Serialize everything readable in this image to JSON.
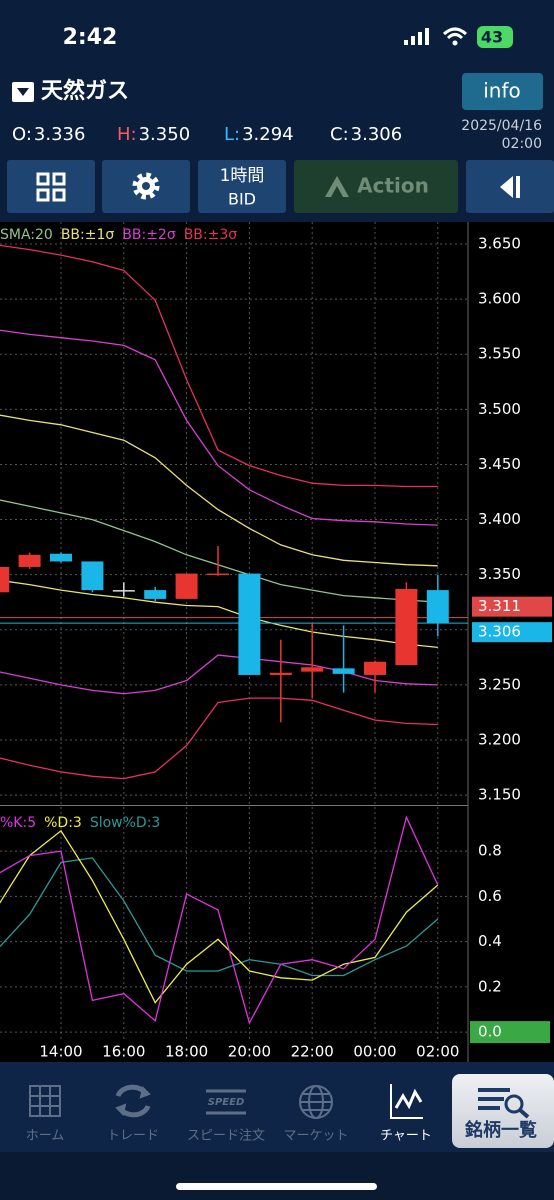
{
  "status_bar": {
    "time": "2:42",
    "battery": 43
  },
  "header": {
    "symbol": "天然ガス",
    "info_button": "info"
  },
  "ohlc": [
    {
      "label": "O:",
      "value": "3.336",
      "color": "#ffffff"
    },
    {
      "label": "H:",
      "value": "3.350",
      "color": "#ff5a5a"
    },
    {
      "label": "L:",
      "value": "3.294",
      "color": "#39b8ff"
    },
    {
      "label": "C:",
      "value": "3.306",
      "color": "#ffffff"
    }
  ],
  "date": "2025/04/16",
  "time": "02:00",
  "toolbar": {
    "interval": "1時間",
    "price_type": "BID",
    "action": "Action"
  },
  "chart_data": [
    {
      "type": "candlestick",
      "categories": [
        null,
        null,
        "14:00",
        null,
        "16:00",
        null,
        "18:00",
        null,
        "20:00",
        null,
        "22:00",
        null,
        "00:00",
        null,
        "02:00"
      ],
      "open": [
        3.334,
        3.357,
        3.369,
        3.362,
        3.336,
        3.336,
        3.328,
        3.35,
        3.351,
        3.259,
        3.262,
        3.265,
        3.259,
        3.268,
        3.336
      ],
      "high": [
        3.357,
        3.37,
        3.37,
        3.362,
        3.343,
        3.339,
        3.351,
        3.376,
        3.351,
        3.291,
        3.306,
        3.304,
        3.272,
        3.343,
        3.35
      ],
      "low": [
        3.334,
        3.355,
        3.361,
        3.334,
        3.33,
        3.326,
        3.328,
        3.349,
        3.259,
        3.216,
        3.238,
        3.243,
        3.243,
        3.268,
        3.294
      ],
      "close": [
        3.357,
        3.368,
        3.362,
        3.336,
        3.336,
        3.328,
        3.351,
        3.351,
        3.259,
        3.261,
        3.266,
        3.26,
        3.271,
        3.337,
        3.306
      ],
      "up_color": "#e8352f",
      "down_color": "#1ab6e8",
      "lines": [
        {
          "name": "SMA:20",
          "color": "#8fc48f",
          "values": [
            3.418,
            3.412,
            3.406,
            3.4,
            3.39,
            3.38,
            3.368,
            3.359,
            3.35,
            3.341,
            3.336,
            3.331,
            3.329,
            3.327,
            3.325
          ]
        }
      ],
      "bands": [
        {
          "name": "BB:±1σ",
          "color": "#e8e07a",
          "upper": [
            3.495,
            3.49,
            3.486,
            3.479,
            3.472,
            3.456,
            3.431,
            3.409,
            3.392,
            3.377,
            3.368,
            3.363,
            3.361,
            3.359,
            3.358
          ],
          "lower": [
            3.345,
            3.341,
            3.336,
            3.332,
            3.329,
            3.325,
            3.322,
            3.321,
            3.311,
            3.304,
            3.298,
            3.294,
            3.291,
            3.287,
            3.284
          ]
        },
        {
          "name": "BB:±2σ",
          "color": "#d63fd2",
          "upper": [
            3.572,
            3.568,
            3.565,
            3.562,
            3.558,
            3.545,
            3.49,
            3.449,
            3.427,
            3.413,
            3.401,
            3.399,
            3.398,
            3.396,
            3.395
          ],
          "lower": [
            3.262,
            3.256,
            3.25,
            3.245,
            3.242,
            3.245,
            3.254,
            3.277,
            3.274,
            3.271,
            3.268,
            3.262,
            3.254,
            3.251,
            3.25
          ]
        },
        {
          "name": "BB:±3σ",
          "color": "#e6305e",
          "upper": [
            3.649,
            3.645,
            3.64,
            3.634,
            3.626,
            3.599,
            3.527,
            3.463,
            3.449,
            3.44,
            3.433,
            3.431,
            3.431,
            3.43,
            3.43
          ],
          "lower": [
            3.184,
            3.177,
            3.171,
            3.167,
            3.165,
            3.171,
            3.195,
            3.234,
            3.238,
            3.238,
            3.236,
            3.227,
            3.218,
            3.215,
            3.214
          ]
        }
      ],
      "price_lines": [
        {
          "value": 3.311,
          "color": "#e04848"
        },
        {
          "value": 3.306,
          "color": "#1ab6e8"
        }
      ],
      "ylim": [
        3.141,
        3.67
      ],
      "yticks": [
        {
          "value": 3.65,
          "label": "3.650"
        },
        {
          "value": 3.6,
          "label": "3.600"
        },
        {
          "value": 3.55,
          "label": "3.550"
        },
        {
          "value": 3.5,
          "label": "3.500"
        },
        {
          "value": 3.45,
          "label": "3.450"
        },
        {
          "value": 3.4,
          "label": "3.400"
        },
        {
          "value": 3.35,
          "label": "3.350"
        },
        {
          "value": 3.3,
          "label": "3.300"
        },
        {
          "value": 3.25,
          "label": "3.250"
        },
        {
          "value": 3.2,
          "label": "3.200"
        },
        {
          "value": 3.15,
          "label": "3.150"
        }
      ],
      "grid": true
    },
    {
      "type": "line",
      "series": [
        {
          "name": "%K:5",
          "color": "#e033e0",
          "values": [
            0.7,
            0.78,
            0.8,
            0.14,
            0.17,
            0.05,
            0.61,
            0.54,
            0.04,
            0.3,
            0.32,
            0.28,
            0.41,
            0.95,
            0.65
          ]
        },
        {
          "name": "%D:3",
          "color": "#f0ec40",
          "values": [
            0.56,
            0.78,
            0.89,
            0.67,
            0.41,
            0.13,
            0.3,
            0.41,
            0.27,
            0.24,
            0.23,
            0.3,
            0.33,
            0.53,
            0.65
          ]
        },
        {
          "name": "Slow%D:3",
          "color": "#2a9a9a",
          "values": [
            0.37,
            0.52,
            0.75,
            0.77,
            0.58,
            0.34,
            0.27,
            0.27,
            0.32,
            0.3,
            0.25,
            0.25,
            0.32,
            0.38,
            0.5
          ]
        }
      ],
      "ylim": [
        -0.035,
        0.995
      ],
      "yticks": [
        0.8,
        0.6,
        0.4,
        0.2,
        {
          "value": 0,
          "label": "0.0"
        }
      ],
      "zero_tick_color": "#3aa845",
      "grid": true
    }
  ],
  "tab_bar": {
    "items": [
      "ホーム",
      "トレード",
      "スピード注文",
      "マーケット",
      "チャート"
    ],
    "active": 4,
    "speed_icon": "SPEED",
    "button": "銘柄一覧"
  }
}
